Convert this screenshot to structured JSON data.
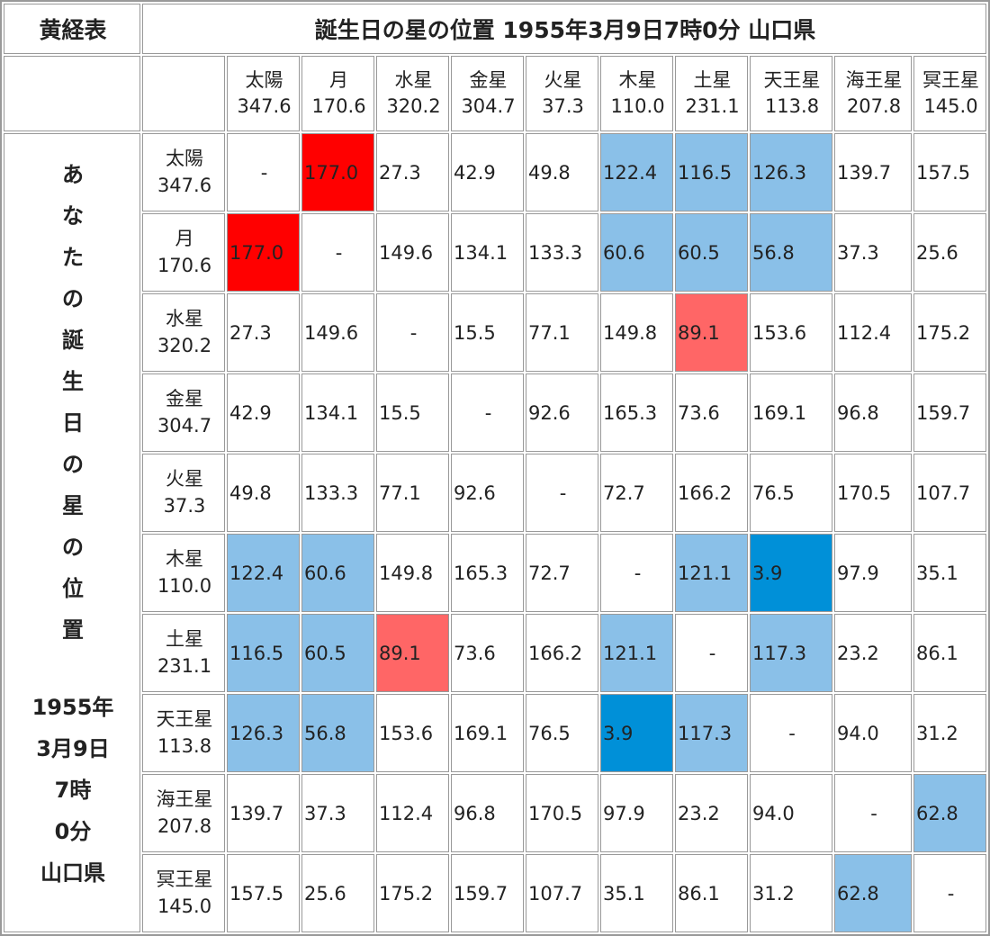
{
  "header": {
    "corner": "黄経表",
    "title": "誕生日の星の位置 1955年3月9日7時0分 山口県"
  },
  "side": {
    "caption": "あなたの誕生日の星の位置",
    "date_lines": [
      "1955年",
      "3月9日",
      "7時",
      "0分",
      "山口県"
    ]
  },
  "columns": [
    {
      "name": "太陽",
      "longitude": "347.6"
    },
    {
      "name": "月",
      "longitude": "170.6"
    },
    {
      "name": "水星",
      "longitude": "320.2"
    },
    {
      "name": "金星",
      "longitude": "304.7"
    },
    {
      "name": "火星",
      "longitude": "37.3"
    },
    {
      "name": "木星",
      "longitude": "110.0"
    },
    {
      "name": "土星",
      "longitude": "231.1"
    },
    {
      "name": "天王星",
      "longitude": "113.8"
    },
    {
      "name": "海王星",
      "longitude": "207.8"
    },
    {
      "name": "冥王星",
      "longitude": "145.0"
    }
  ],
  "rows": [
    {
      "name": "太陽",
      "longitude": "347.6",
      "cells": [
        "-",
        "177.0",
        "27.3",
        "42.9",
        "49.8",
        "122.4",
        "116.5",
        "126.3",
        "139.7",
        "157.5"
      ],
      "colors": [
        null,
        "#ff0000",
        null,
        null,
        null,
        "#8ac0e8",
        "#8ac0e8",
        "#8ac0e8",
        null,
        null
      ]
    },
    {
      "name": "月",
      "longitude": "170.6",
      "cells": [
        "177.0",
        "-",
        "149.6",
        "134.1",
        "133.3",
        "60.6",
        "60.5",
        "56.8",
        "37.3",
        "25.6"
      ],
      "colors": [
        "#ff0000",
        null,
        null,
        null,
        null,
        "#8ac0e8",
        "#8ac0e8",
        "#8ac0e8",
        null,
        null
      ]
    },
    {
      "name": "水星",
      "longitude": "320.2",
      "cells": [
        "27.3",
        "149.6",
        "-",
        "15.5",
        "77.1",
        "149.8",
        "89.1",
        "153.6",
        "112.4",
        "175.2"
      ],
      "colors": [
        null,
        null,
        null,
        null,
        null,
        null,
        "#ff6666",
        null,
        null,
        null
      ]
    },
    {
      "name": "金星",
      "longitude": "304.7",
      "cells": [
        "42.9",
        "134.1",
        "15.5",
        "-",
        "92.6",
        "165.3",
        "73.6",
        "169.1",
        "96.8",
        "159.7"
      ],
      "colors": [
        null,
        null,
        null,
        null,
        null,
        null,
        null,
        null,
        null,
        null
      ]
    },
    {
      "name": "火星",
      "longitude": "37.3",
      "cells": [
        "49.8",
        "133.3",
        "77.1",
        "92.6",
        "-",
        "72.7",
        "166.2",
        "76.5",
        "170.5",
        "107.7"
      ],
      "colors": [
        null,
        null,
        null,
        null,
        null,
        null,
        null,
        null,
        null,
        null
      ]
    },
    {
      "name": "木星",
      "longitude": "110.0",
      "cells": [
        "122.4",
        "60.6",
        "149.8",
        "165.3",
        "72.7",
        "-",
        "121.1",
        "3.9",
        "97.9",
        "35.1"
      ],
      "colors": [
        "#8ac0e8",
        "#8ac0e8",
        null,
        null,
        null,
        null,
        "#8ac0e8",
        "#0090d8",
        null,
        null
      ]
    },
    {
      "name": "土星",
      "longitude": "231.1",
      "cells": [
        "116.5",
        "60.5",
        "89.1",
        "73.6",
        "166.2",
        "121.1",
        "-",
        "117.3",
        "23.2",
        "86.1"
      ],
      "colors": [
        "#8ac0e8",
        "#8ac0e8",
        "#ff6666",
        null,
        null,
        "#8ac0e8",
        null,
        "#8ac0e8",
        null,
        null
      ]
    },
    {
      "name": "天王星",
      "longitude": "113.8",
      "cells": [
        "126.3",
        "56.8",
        "153.6",
        "169.1",
        "76.5",
        "3.9",
        "117.3",
        "-",
        "94.0",
        "31.2"
      ],
      "colors": [
        "#8ac0e8",
        "#8ac0e8",
        null,
        null,
        null,
        "#0090d8",
        "#8ac0e8",
        null,
        null,
        null
      ]
    },
    {
      "name": "海王星",
      "longitude": "207.8",
      "cells": [
        "139.7",
        "37.3",
        "112.4",
        "96.8",
        "170.5",
        "97.9",
        "23.2",
        "94.0",
        "-",
        "62.8"
      ],
      "colors": [
        null,
        null,
        null,
        null,
        null,
        null,
        null,
        null,
        null,
        "#8ac0e8"
      ]
    },
    {
      "name": "冥王星",
      "longitude": "145.0",
      "cells": [
        "157.5",
        "25.6",
        "175.2",
        "159.7",
        "107.7",
        "35.1",
        "86.1",
        "31.2",
        "62.8",
        "-"
      ],
      "colors": [
        null,
        null,
        null,
        null,
        null,
        null,
        null,
        null,
        "#8ac0e8",
        null
      ]
    }
  ]
}
